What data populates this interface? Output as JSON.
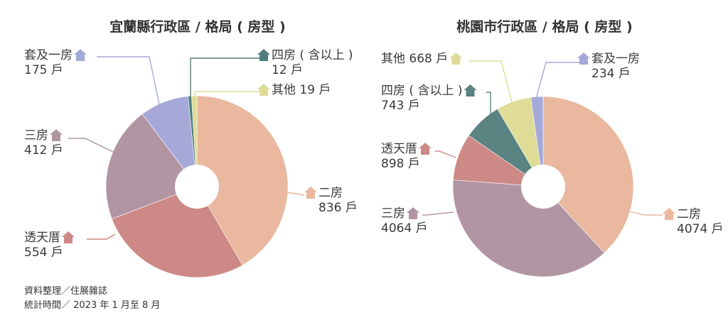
{
  "source": {
    "line1": "資料整理／住展雜誌",
    "line2": "統計時間／ 2023 年 1 月至 8 月"
  },
  "chart_data": [
    {
      "type": "pie",
      "title": "宜蘭縣行政區 / 格局 ( 房型 )",
      "slices": [
        {
          "category": "二房",
          "value": 836,
          "unit": "戶",
          "color": "#e9b89e"
        },
        {
          "category": "透天厝",
          "value": 554,
          "unit": "戶",
          "color": "#cd8986"
        },
        {
          "category": "三房",
          "value": 412,
          "unit": "戶",
          "color": "#b295a3"
        },
        {
          "category": "套及一房",
          "value": 175,
          "unit": "戶",
          "color": "#a6a9d8"
        },
        {
          "category": "四房 ( 含以上 )",
          "value": 12,
          "unit": "戶",
          "color": "#4f7d7b"
        },
        {
          "category": "其他",
          "value": 19,
          "unit": "戶",
          "color": "#dedc96"
        }
      ]
    },
    {
      "type": "pie",
      "title": "桃園市行政區 / 格局 ( 房型 )",
      "slices": [
        {
          "category": "二房",
          "value": 4074,
          "unit": "戶",
          "color": "#e9b89e"
        },
        {
          "category": "三房",
          "value": 4064,
          "unit": "戶",
          "color": "#b295a3"
        },
        {
          "category": "透天厝",
          "value": 898,
          "unit": "戶",
          "color": "#cd8986"
        },
        {
          "category": "四房 ( 含以上 )",
          "value": 743,
          "unit": "戶",
          "color": "#5a8381"
        },
        {
          "category": "其他",
          "value": 668,
          "unit": "戶",
          "color": "#dedc96"
        },
        {
          "category": "套及一房",
          "value": 234,
          "unit": "戶",
          "color": "#a6a9d8"
        }
      ]
    }
  ]
}
